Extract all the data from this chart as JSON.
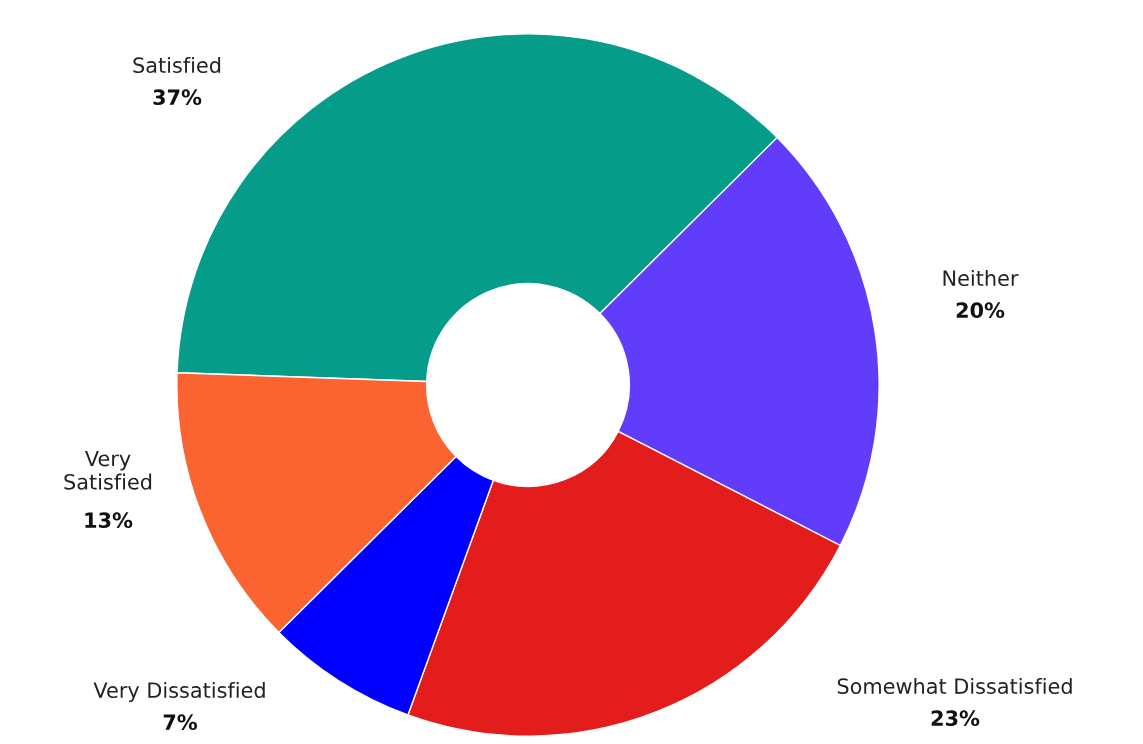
{
  "chart_data": {
    "type": "donut",
    "categories": [
      "Satisfied",
      "Neither",
      "Somewhat Dissatisfied",
      "Very Dissatisfied",
      "Very\nSatisfied"
    ],
    "values": [
      37,
      20,
      23,
      7,
      13
    ],
    "colors": [
      "#069c8a",
      "#613dfb",
      "#e31c1c",
      "#0000ff",
      "#fb6330"
    ],
    "value_labels": [
      "37%",
      "20%",
      "23%",
      "7%",
      "13%"
    ],
    "legend": false
  }
}
